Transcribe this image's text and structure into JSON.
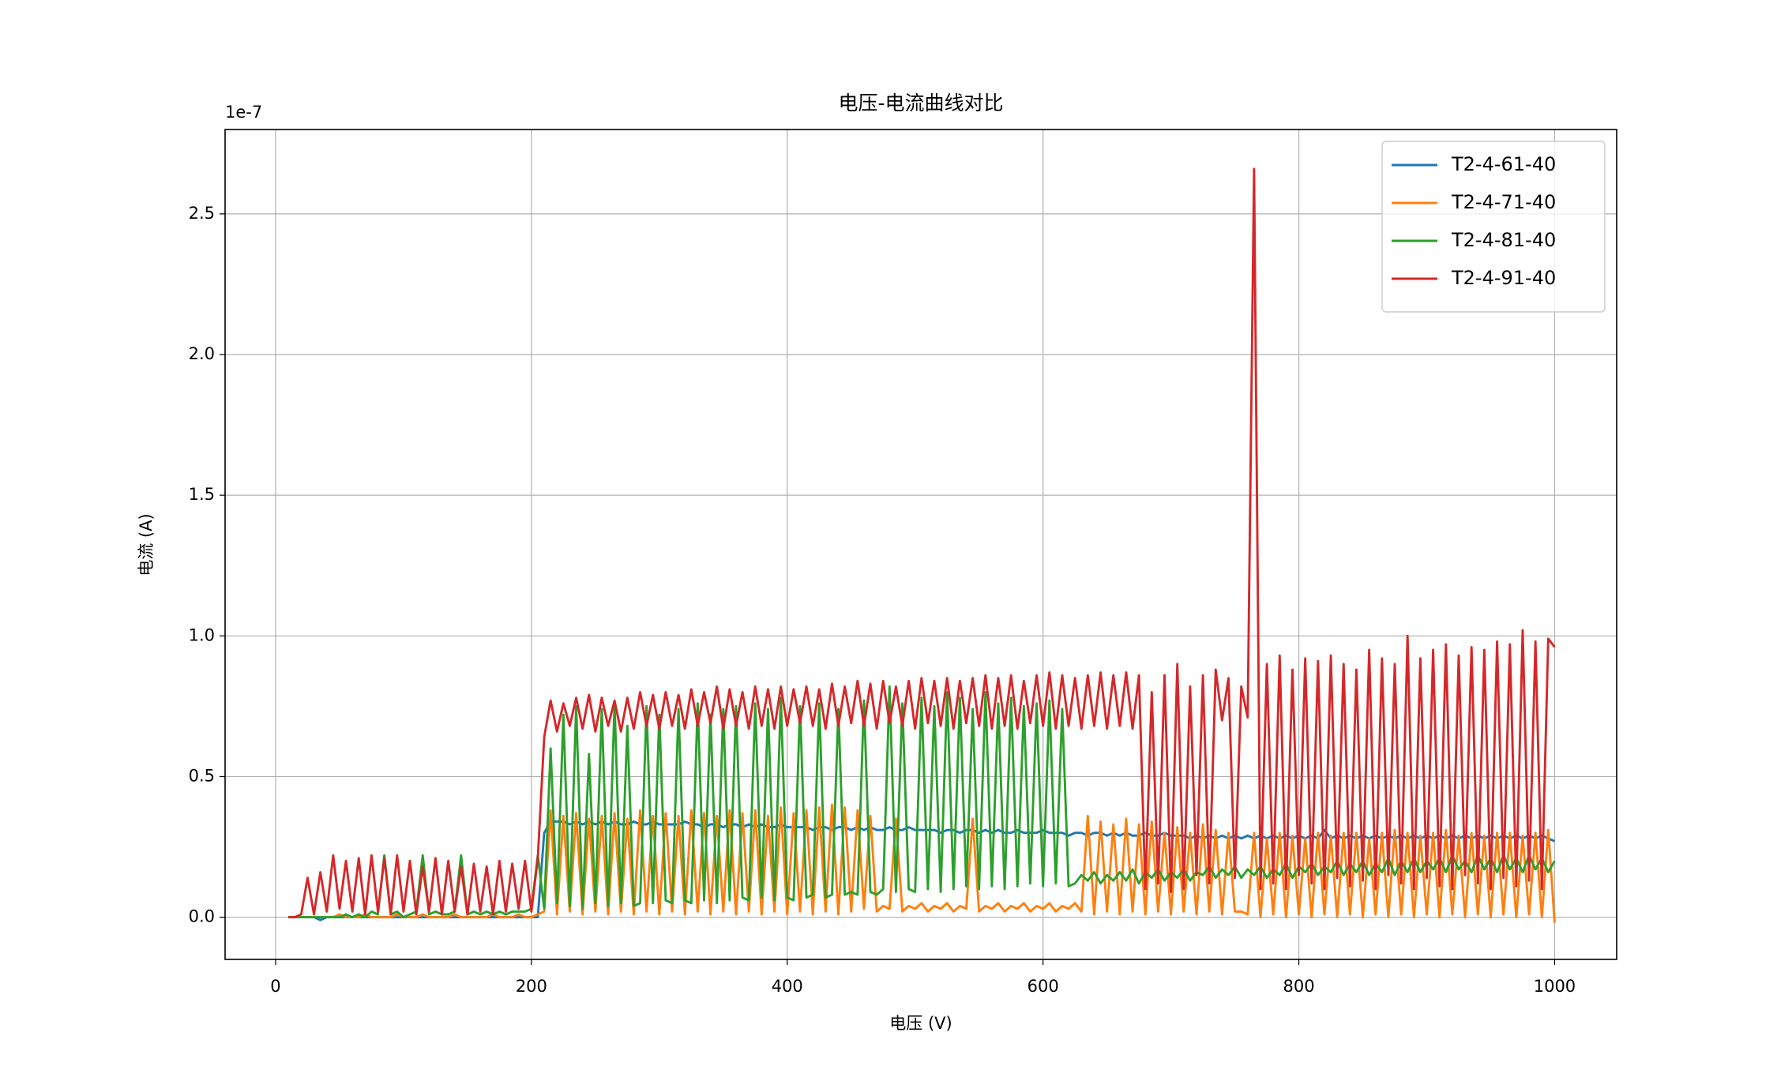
{
  "chart_data": {
    "type": "line",
    "title": "电压-电流曲线对比",
    "xlabel": "电压 (V)",
    "ylabel": "电流 (A)",
    "offset_label": "1e-7",
    "xlim": [
      -39.5,
      1048.5
    ],
    "ylim": [
      -0.15,
      2.8
    ],
    "xticks": [
      0,
      200,
      400,
      600,
      800,
      1000
    ],
    "yticks": [
      {
        "value": 0,
        "label": "0.0"
      },
      0.5,
      {
        "value": 1,
        "label": "1.0"
      },
      1.5,
      {
        "value": 2,
        "label": "2.0"
      },
      2.5
    ],
    "grid": true,
    "legend": "upper right",
    "x": [
      10,
      15,
      20,
      25,
      30,
      35,
      40,
      45,
      50,
      55,
      60,
      65,
      70,
      75,
      80,
      85,
      90,
      95,
      100,
      105,
      110,
      115,
      120,
      125,
      130,
      135,
      140,
      145,
      150,
      155,
      160,
      165,
      170,
      175,
      180,
      185,
      190,
      195,
      200,
      205,
      210,
      215,
      220,
      225,
      230,
      235,
      240,
      245,
      250,
      255,
      260,
      265,
      270,
      275,
      280,
      285,
      290,
      295,
      300,
      305,
      310,
      315,
      320,
      325,
      330,
      335,
      340,
      345,
      350,
      355,
      360,
      365,
      370,
      375,
      380,
      385,
      390,
      395,
      400,
      405,
      410,
      415,
      420,
      425,
      430,
      435,
      440,
      445,
      450,
      455,
      460,
      465,
      470,
      475,
      480,
      485,
      490,
      495,
      500,
      505,
      510,
      515,
      520,
      525,
      530,
      535,
      540,
      545,
      550,
      555,
      560,
      565,
      570,
      575,
      580,
      585,
      590,
      595,
      600,
      605,
      610,
      615,
      620,
      625,
      630,
      635,
      640,
      645,
      650,
      655,
      660,
      665,
      670,
      675,
      680,
      685,
      690,
      695,
      700,
      705,
      710,
      715,
      720,
      725,
      730,
      735,
      740,
      745,
      750,
      755,
      760,
      765,
      770,
      775,
      780,
      785,
      790,
      795,
      800,
      805,
      810,
      815,
      820,
      825,
      830,
      835,
      840,
      845,
      850,
      855,
      860,
      865,
      870,
      875,
      880,
      885,
      890,
      895,
      900,
      905,
      910,
      915,
      920,
      925,
      930,
      935,
      940,
      945,
      950,
      955,
      960,
      965,
      970,
      975,
      980,
      985,
      990,
      995,
      1000
    ],
    "series": [
      {
        "name": "T2-4-61-40",
        "color": "#1f77b4",
        "values": [
          0,
          0,
          0,
          0,
          0,
          -0.01,
          0,
          0,
          0,
          0,
          0,
          0,
          0,
          0,
          0,
          0,
          0,
          0,
          0,
          0,
          0,
          0,
          0,
          0,
          0,
          0,
          0,
          0,
          0,
          0,
          0,
          0,
          0,
          0,
          0,
          0,
          0,
          0,
          0,
          0,
          0.3,
          0.34,
          0.34,
          0.34,
          0.33,
          0.34,
          0.33,
          0.34,
          0.33,
          0.34,
          0.33,
          0.34,
          0.33,
          0.33,
          0.34,
          0.33,
          0.33,
          0.34,
          0.33,
          0.33,
          0.33,
          0.33,
          0.34,
          0.33,
          0.33,
          0.32,
          0.33,
          0.33,
          0.32,
          0.33,
          0.33,
          0.32,
          0.33,
          0.32,
          0.33,
          0.32,
          0.32,
          0.33,
          0.32,
          0.32,
          0.32,
          0.32,
          0.31,
          0.32,
          0.32,
          0.31,
          0.32,
          0.32,
          0.31,
          0.32,
          0.31,
          0.32,
          0.31,
          0.31,
          0.32,
          0.31,
          0.31,
          0.32,
          0.31,
          0.31,
          0.31,
          0.31,
          0.3,
          0.31,
          0.31,
          0.3,
          0.31,
          0.31,
          0.3,
          0.31,
          0.3,
          0.31,
          0.3,
          0.3,
          0.31,
          0.3,
          0.3,
          0.3,
          0.31,
          0.3,
          0.3,
          0.3,
          0.29,
          0.3,
          0.3,
          0.29,
          0.3,
          0.3,
          0.29,
          0.3,
          0.29,
          0.3,
          0.29,
          0.29,
          0.3,
          0.29,
          0.29,
          0.3,
          0.29,
          0.29,
          0.29,
          0.28,
          0.29,
          0.28,
          0.29,
          0.28,
          0.29,
          0.28,
          0.29,
          0.28,
          0.29,
          0.28,
          0.29,
          0.28,
          0.29,
          0.28,
          0.29,
          0.28,
          0.29,
          0.28,
          0.29,
          0.28,
          0.31,
          0.28,
          0.29,
          0.28,
          0.29,
          0.28,
          0.29,
          0.28,
          0.29,
          0.28,
          0.29,
          0.28,
          0.29,
          0.28,
          0.29,
          0.28,
          0.29,
          0.28,
          0.29,
          0.28,
          0.29,
          0.28,
          0.29,
          0.28,
          0.29,
          0.28,
          0.29,
          0.28,
          0.29,
          0.28,
          0.29,
          0.28,
          0.29,
          0.28,
          0.29,
          0.28,
          0.27
        ]
      },
      {
        "name": "T2-4-71-40",
        "color": "#ff7f0e",
        "values": [
          0,
          0,
          0,
          0,
          0,
          0,
          0,
          0,
          0.01,
          0,
          0,
          0,
          0.01,
          0,
          0,
          0,
          0,
          0.01,
          0,
          0,
          0,
          0.01,
          0,
          0,
          0,
          0,
          0.01,
          0,
          0,
          0,
          0,
          0,
          0.01,
          0,
          0,
          0,
          0.01,
          0,
          0,
          0.01,
          0.02,
          0.38,
          0.01,
          0.36,
          0.02,
          0.37,
          0.01,
          0.35,
          0.02,
          0.36,
          0.01,
          0.37,
          0.02,
          0.35,
          0.01,
          0.38,
          0.02,
          0.36,
          0.01,
          0.37,
          0.02,
          0.36,
          0.01,
          0.38,
          0.02,
          0.37,
          0.01,
          0.36,
          0.02,
          0.38,
          0.01,
          0.37,
          0.02,
          0.38,
          0.01,
          0.36,
          0.02,
          0.39,
          0.01,
          0.37,
          0.02,
          0.38,
          0.01,
          0.39,
          0.02,
          0.4,
          0.01,
          0.39,
          0.02,
          0.38,
          0.03,
          0.36,
          0.02,
          0.04,
          0.03,
          0.35,
          0.02,
          0.04,
          0.03,
          0.05,
          0.02,
          0.04,
          0.03,
          0.05,
          0.02,
          0.04,
          0.03,
          0.35,
          0.02,
          0.04,
          0.03,
          0.05,
          0.02,
          0.04,
          0.03,
          0.05,
          0.02,
          0.04,
          0.03,
          0.05,
          0.02,
          0.04,
          0.03,
          0.05,
          0.02,
          0.36,
          0.01,
          0.34,
          0.02,
          0.33,
          0.01,
          0.35,
          0.02,
          0.33,
          0.01,
          0.34,
          0.02,
          0.3,
          0.01,
          0.32,
          0.02,
          0.3,
          0.01,
          0.33,
          0.02,
          0.31,
          0.01,
          0.3,
          0.02,
          0.02,
          0.01,
          0.3,
          0,
          0.28,
          0.01,
          0.3,
          0,
          0.29,
          0.01,
          0.28,
          0,
          0.3,
          0.01,
          0.29,
          0,
          0.3,
          0.01,
          0.3,
          0,
          0.28,
          0.01,
          0.3,
          0,
          0.31,
          0.01,
          0.3,
          0,
          0.29,
          0.01,
          0.3,
          0,
          0.31,
          0.01,
          0.29,
          0,
          0.3,
          0.01,
          0.29,
          0,
          0.3,
          0.01,
          0.3,
          0,
          0.29,
          0.01,
          0.3,
          0,
          0.31,
          -0.02
        ]
      },
      {
        "name": "T2-4-81-40",
        "color": "#2ca02c",
        "values": [
          0,
          0,
          0,
          0,
          0,
          0,
          0,
          0,
          0,
          0.01,
          0,
          0.01,
          0,
          0.02,
          0.01,
          0.22,
          0.01,
          0.02,
          0,
          0.01,
          0.02,
          0.22,
          0.01,
          0.02,
          0.01,
          0.01,
          0.02,
          0.22,
          0.01,
          0.02,
          0.01,
          0.02,
          0.01,
          0.02,
          0.01,
          0.02,
          0.02,
          0.02,
          0.03,
          0.22,
          0.03,
          0.6,
          0.05,
          0.72,
          0.04,
          0.75,
          0.03,
          0.58,
          0.05,
          0.74,
          0.04,
          0.76,
          0.05,
          0.68,
          0.04,
          0.05,
          0.75,
          0.05,
          0.72,
          0.06,
          0.05,
          0.74,
          0.06,
          0.05,
          0.76,
          0.06,
          0.72,
          0.05,
          0.74,
          0.06,
          0.75,
          0.07,
          0.06,
          0.76,
          0.07,
          0.74,
          0.06,
          0.78,
          0.07,
          0.06,
          0.75,
          0.07,
          0.08,
          0.76,
          0.07,
          0.08,
          0.74,
          0.08,
          0.09,
          0.08,
          0.77,
          0.09,
          0.08,
          0.1,
          0.82,
          0.09,
          0.76,
          0.1,
          0.09,
          0.78,
          0.1,
          0.75,
          0.09,
          0.8,
          0.1,
          0.78,
          0.11,
          0.74,
          0.1,
          0.8,
          0.11,
          0.76,
          0.1,
          0.78,
          0.11,
          0.75,
          0.12,
          0.76,
          0.11,
          0.77,
          0.12,
          0.74,
          0.11,
          0.12,
          0.15,
          0.13,
          0.16,
          0.12,
          0.15,
          0.13,
          0.16,
          0.13,
          0.17,
          0.12,
          0.16,
          0.14,
          0.17,
          0.13,
          0.16,
          0.14,
          0.17,
          0.13,
          0.16,
          0.15,
          0.18,
          0.14,
          0.17,
          0.15,
          0.18,
          0.14,
          0.17,
          0.15,
          0.18,
          0.14,
          0.17,
          0.15,
          0.19,
          0.14,
          0.18,
          0.16,
          0.19,
          0.15,
          0.18,
          0.16,
          0.2,
          0.15,
          0.19,
          0.16,
          0.2,
          0.15,
          0.19,
          0.16,
          0.21,
          0.15,
          0.2,
          0.16,
          0.21,
          0.16,
          0.2,
          0.17,
          0.21,
          0.16,
          0.22,
          0.17,
          0.2,
          0.16,
          0.22,
          0.17,
          0.21,
          0.16,
          0.22,
          0.17,
          0.21,
          0.16,
          0.22,
          0.17,
          0.21,
          0.16,
          0.2
        ]
      },
      {
        "name": "T2-4-91-40",
        "color": "#d62728",
        "values": [
          0,
          0,
          0.01,
          0.14,
          0.01,
          0.16,
          0.02,
          0.22,
          0.03,
          0.2,
          0.02,
          0.21,
          0.01,
          0.22,
          0.02,
          0.21,
          0.01,
          0.22,
          0.02,
          0.2,
          0.01,
          0.18,
          0.02,
          0.21,
          0.01,
          0.2,
          0.02,
          0.18,
          0.01,
          0.19,
          0.02,
          0.18,
          0.01,
          0.2,
          0.02,
          0.19,
          0.03,
          0.2,
          0.02,
          0.21,
          0.64,
          0.77,
          0.66,
          0.76,
          0.68,
          0.78,
          0.67,
          0.79,
          0.66,
          0.78,
          0.68,
          0.77,
          0.66,
          0.78,
          0.67,
          0.8,
          0.68,
          0.79,
          0.67,
          0.8,
          0.68,
          0.79,
          0.67,
          0.81,
          0.68,
          0.8,
          0.69,
          0.82,
          0.67,
          0.81,
          0.68,
          0.8,
          0.67,
          0.82,
          0.68,
          0.81,
          0.67,
          0.82,
          0.68,
          0.81,
          0.69,
          0.82,
          0.68,
          0.81,
          0.67,
          0.83,
          0.68,
          0.82,
          0.69,
          0.84,
          0.68,
          0.83,
          0.67,
          0.84,
          0.69,
          0.82,
          0.68,
          0.84,
          0.67,
          0.85,
          0.69,
          0.84,
          0.68,
          0.85,
          0.67,
          0.84,
          0.69,
          0.85,
          0.68,
          0.86,
          0.67,
          0.85,
          0.68,
          0.86,
          0.67,
          0.84,
          0.69,
          0.86,
          0.68,
          0.87,
          0.67,
          0.86,
          0.68,
          0.85,
          0.67,
          0.86,
          0.68,
          0.87,
          0.67,
          0.86,
          0.68,
          0.87,
          0.67,
          0.86,
          0.1,
          0.8,
          0.12,
          0.86,
          0.09,
          0.9,
          0.1,
          0.82,
          0.15,
          0.86,
          0.12,
          0.88,
          0.7,
          0.85,
          0.14,
          0.82,
          0.71,
          2.66,
          0.1,
          0.9,
          0.12,
          0.93,
          0.1,
          0.88,
          0.15,
          0.92,
          0.12,
          0.91,
          0.1,
          0.93,
          0.14,
          0.9,
          0.11,
          0.88,
          0.13,
          0.95,
          0.1,
          0.92,
          0.15,
          0.9,
          0.12,
          1.0,
          0.1,
          0.92,
          0.14,
          0.95,
          0.11,
          0.97,
          0.1,
          0.93,
          0.15,
          0.96,
          0.12,
          0.95,
          0.1,
          0.98,
          0.14,
          0.97,
          0.11,
          1.02,
          0.13,
          0.98,
          0.1,
          0.99,
          0.96
        ]
      }
    ]
  }
}
